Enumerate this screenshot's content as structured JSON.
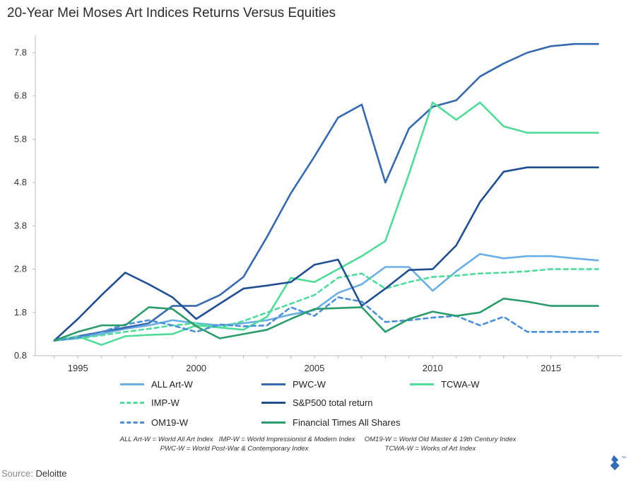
{
  "title": "20-Year Mei Moses Art Indices Returns Versus Equities",
  "source_label": "Source:",
  "source_value": "Deloitte",
  "logo_mark": "™",
  "footnotes": [
    "ALL Art-W = World All Art Index   IMP-W = World Impressionist & Modern Index     OM19-W = World Old Master & 19th Century Index",
    "PWC-W = World Post-War & Contemporary Index                                         TCWA-W = Works of Art Index"
  ],
  "colors": {
    "all_art": "#6aaee6",
    "pwc": "#3569b0",
    "tcwa": "#4fdc9a",
    "imp": "#4fdc9a",
    "sp500": "#1f4e93",
    "om19": "#4a8fd8",
    "ft": "#2a9c6a"
  },
  "chart_data": {
    "type": "line",
    "title": "20-Year Mei Moses Art Indices Returns Versus Equities",
    "xlabel": "",
    "ylabel": "",
    "xlim": [
      1993.2,
      2018.0
    ],
    "ylim": [
      0.8,
      8.2
    ],
    "x_ticks": [
      1995,
      2000,
      2005,
      2010,
      2015
    ],
    "y_ticks": [
      0.8,
      1.8,
      2.8,
      3.8,
      4.8,
      5.8,
      6.8,
      7.8
    ],
    "y_tick_labels": [
      "0.8",
      "1.8",
      "2.8",
      "3.8",
      "4.8",
      "5.8",
      "6.8",
      "7.8"
    ],
    "grid": false,
    "legend_position": "bottom",
    "series": [
      {
        "name": "ALL Art-W",
        "key": "all_art",
        "dash": false,
        "x": [
          1994,
          1995,
          1996,
          1997,
          1998,
          1999,
          2000,
          2001,
          2002,
          2003,
          2004,
          2005,
          2006,
          2007,
          2008,
          2009,
          2010,
          2011,
          2012,
          2013,
          2014,
          2015,
          2016,
          2017
        ],
        "y": [
          1.15,
          1.2,
          1.3,
          1.42,
          1.5,
          1.62,
          1.55,
          1.5,
          1.55,
          1.62,
          1.75,
          1.85,
          2.25,
          2.45,
          2.85,
          2.85,
          2.3,
          2.75,
          3.15,
          3.05,
          3.1,
          3.1,
          3.05,
          3.0
        ]
      },
      {
        "name": "PWC-W",
        "key": "pwc",
        "dash": false,
        "x": [
          1994,
          1995,
          1996,
          1997,
          1998,
          1999,
          2000,
          2001,
          2002,
          2003,
          2004,
          2005,
          2006,
          2007,
          2008,
          2009,
          2010,
          2011,
          2012,
          2013,
          2014,
          2015,
          2016,
          2017
        ],
        "y": [
          1.15,
          1.25,
          1.35,
          1.45,
          1.55,
          1.95,
          1.95,
          2.2,
          2.62,
          3.55,
          4.55,
          5.4,
          6.3,
          6.6,
          4.8,
          6.05,
          6.55,
          6.7,
          7.25,
          7.55,
          7.8,
          7.95,
          8.0,
          8.0
        ]
      },
      {
        "name": "TCWA-W",
        "key": "tcwa",
        "dash": false,
        "x": [
          1994,
          1995,
          1996,
          1997,
          1998,
          1999,
          2000,
          2001,
          2002,
          2003,
          2004,
          2005,
          2006,
          2007,
          2008,
          2009,
          2010,
          2011,
          2012,
          2013,
          2014,
          2015,
          2016,
          2017
        ],
        "y": [
          1.15,
          1.25,
          1.05,
          1.25,
          1.28,
          1.3,
          1.5,
          1.45,
          1.4,
          1.7,
          2.6,
          2.5,
          2.8,
          3.1,
          3.45,
          5.0,
          6.65,
          6.25,
          6.65,
          6.1,
          5.95,
          5.95,
          5.95,
          5.95
        ]
      },
      {
        "name": "IMP-W",
        "key": "imp",
        "dash": true,
        "x": [
          1994,
          1995,
          1996,
          1997,
          1998,
          1999,
          2000,
          2001,
          2002,
          2003,
          2004,
          2005,
          2006,
          2007,
          2008,
          2009,
          2010,
          2011,
          2012,
          2013,
          2014,
          2015,
          2016,
          2017
        ],
        "y": [
          1.15,
          1.2,
          1.27,
          1.35,
          1.42,
          1.5,
          1.55,
          1.45,
          1.6,
          1.8,
          2.0,
          2.2,
          2.6,
          2.7,
          2.35,
          2.5,
          2.62,
          2.65,
          2.7,
          2.72,
          2.75,
          2.8,
          2.8,
          2.8
        ]
      },
      {
        "name": "S&P500 total return",
        "key": "sp500",
        "dash": false,
        "x": [
          1994,
          1995,
          1996,
          1997,
          1998,
          1999,
          2000,
          2001,
          2002,
          2003,
          2004,
          2005,
          2006,
          2007,
          2008,
          2009,
          2010,
          2011,
          2012,
          2013,
          2014,
          2015,
          2016,
          2017
        ],
        "y": [
          1.15,
          1.65,
          2.2,
          2.72,
          2.45,
          2.15,
          1.65,
          2.0,
          2.35,
          2.42,
          2.5,
          2.9,
          3.02,
          1.95,
          2.35,
          2.78,
          2.8,
          3.35,
          4.35,
          5.05,
          5.15,
          5.15,
          5.15,
          5.15
        ]
      },
      {
        "name": "OM19-W",
        "key": "om19",
        "dash": true,
        "x": [
          1994,
          1995,
          1996,
          1997,
          1998,
          1999,
          2000,
          2001,
          2002,
          2003,
          2004,
          2005,
          2006,
          2007,
          2008,
          2009,
          2010,
          2011,
          2012,
          2013,
          2014,
          2015,
          2016,
          2017
        ],
        "y": [
          1.15,
          1.22,
          1.35,
          1.52,
          1.62,
          1.5,
          1.35,
          1.52,
          1.48,
          1.5,
          1.92,
          1.72,
          2.15,
          2.05,
          1.58,
          1.62,
          1.68,
          1.72,
          1.5,
          1.7,
          1.35,
          1.35,
          1.35,
          1.35
        ]
      },
      {
        "name": "Financial Times All Shares",
        "key": "ft",
        "dash": false,
        "x": [
          1994,
          1995,
          1996,
          1997,
          1998,
          1999,
          2000,
          2001,
          2002,
          2003,
          2004,
          2005,
          2006,
          2007,
          2008,
          2009,
          2010,
          2011,
          2012,
          2013,
          2014,
          2015,
          2016,
          2017
        ],
        "y": [
          1.15,
          1.35,
          1.5,
          1.5,
          1.92,
          1.88,
          1.48,
          1.2,
          1.3,
          1.4,
          1.65,
          1.88,
          1.9,
          1.92,
          1.35,
          1.65,
          1.82,
          1.72,
          1.8,
          2.12,
          2.05,
          1.95,
          1.95,
          1.95
        ]
      }
    ]
  }
}
